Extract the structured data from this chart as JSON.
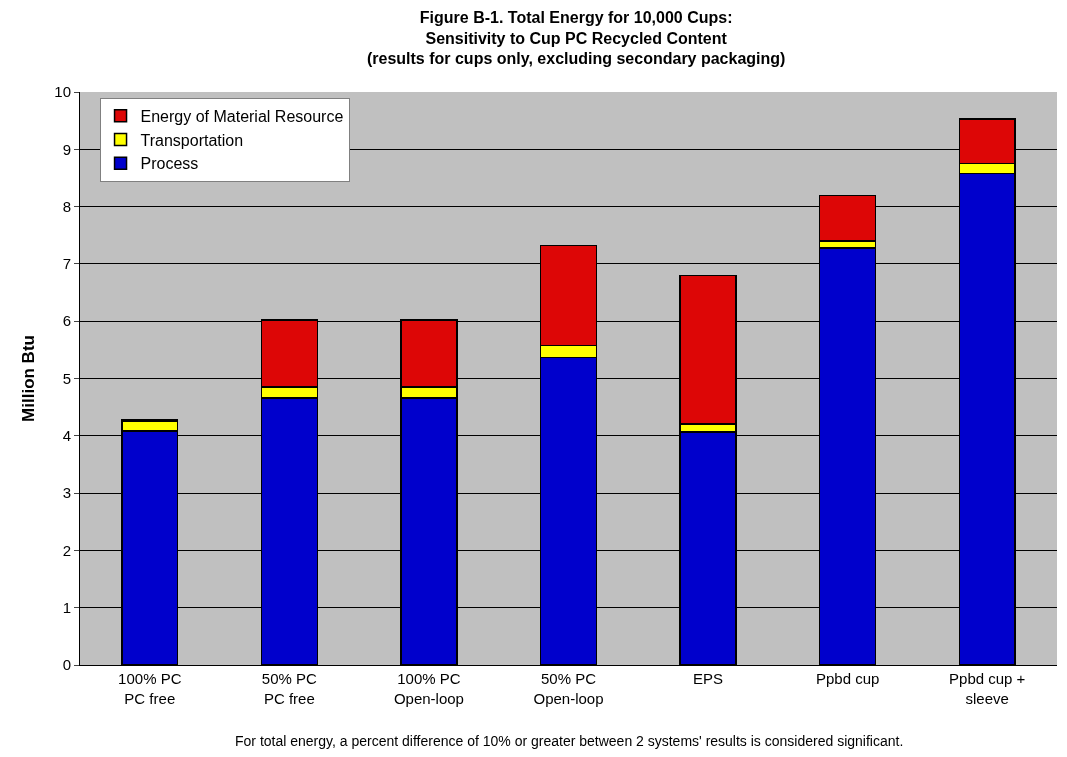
{
  "chart_data": {
    "type": "bar",
    "stacked": true,
    "title": "Figure B-1. Total Energy for 10,000 Cups:\nSensitivity to Cup PC Recycled Content\n(results for cups only, excluding secondary packaging)",
    "ylabel": "Million Btu",
    "categories": [
      "100% PC\nPC free",
      "50% PC\nPC free",
      "100% PC\nOpen-loop",
      "50% PC\nOpen-loop",
      "EPS",
      "Ppbd cup",
      "Ppbd cup +\nsleeve"
    ],
    "series": [
      {
        "name": "Process",
        "color": "#0000cc",
        "values": [
          4.08,
          4.66,
          4.66,
          5.37,
          4.07,
          7.28,
          8.58
        ]
      },
      {
        "name": "Transportation",
        "color": "#ffff00",
        "values": [
          0.17,
          0.19,
          0.19,
          0.21,
          0.14,
          0.12,
          0.17
        ]
      },
      {
        "name": "Energy of Material Resource",
        "color": "#dd0606",
        "values": [
          0.03,
          1.17,
          1.17,
          1.74,
          2.59,
          0.79,
          0.78
        ]
      }
    ],
    "ylim": [
      0,
      10
    ],
    "yticks": [
      0,
      1,
      2,
      3,
      4,
      5,
      6,
      7,
      8,
      9,
      10
    ],
    "grid": "y",
    "legend": "top left",
    "annotations": [
      "For total energy, a percent difference of 10% or greater between 2 systems' results is considered significant."
    ]
  }
}
